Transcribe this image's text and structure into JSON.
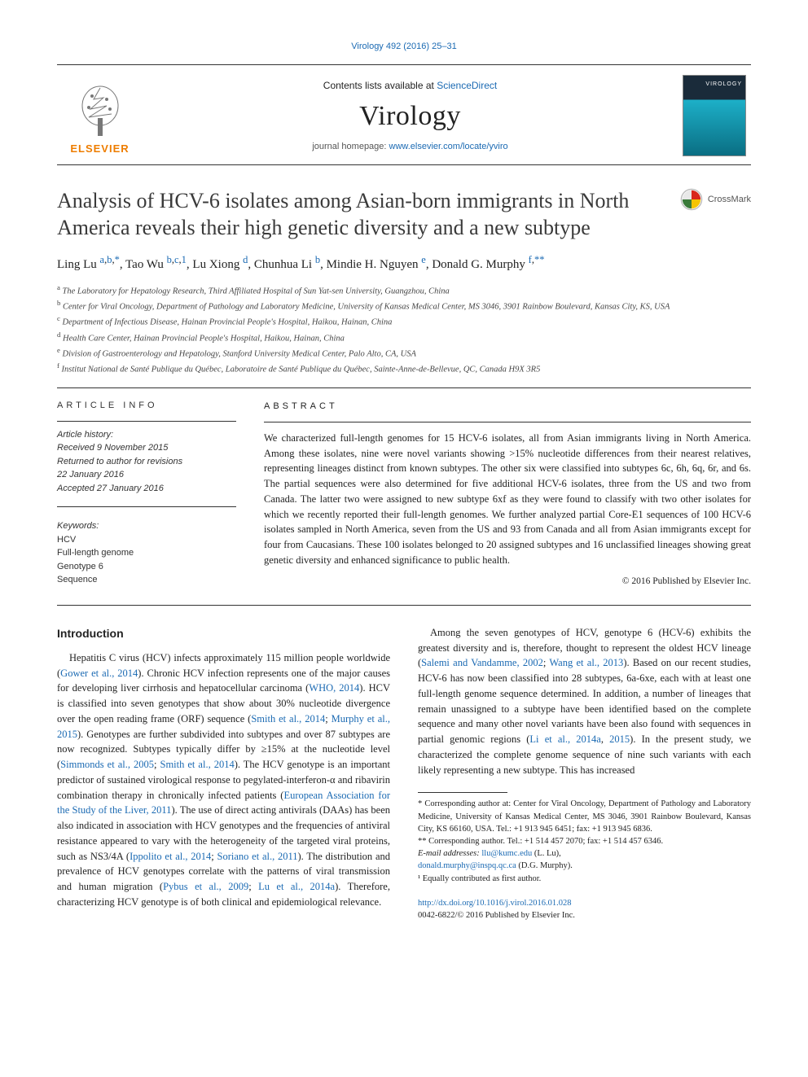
{
  "top_citation": "Virology 492 (2016) 25–31",
  "header": {
    "contents_prefix": "Contents lists available at ",
    "contents_link": "ScienceDirect",
    "journal_name": "Virology",
    "homepage_prefix": "journal homepage: ",
    "homepage_url": "www.elsevier.com/locate/yviro",
    "publisher_brand": "ELSEVIER",
    "cover_label": "VIROLOGY"
  },
  "crossmark_label": "CrossMark",
  "title": "Analysis of HCV-6 isolates among Asian-born immigrants in North America reveals their high genetic diversity and a new subtype",
  "authors_html": "Ling Lu <sup><a href=\"#\">a</a>,<a href=\"#\">b</a>,<a href=\"#\">*</a></sup>, Tao Wu <sup><a href=\"#\">b</a>,<a href=\"#\">c</a>,<a href=\"#\">1</a></sup>, Lu Xiong <sup><a href=\"#\">d</a></sup>, Chunhua Li <sup><a href=\"#\">b</a></sup>, Mindie H. Nguyen <sup><a href=\"#\">e</a></sup>, Donald G. Murphy <sup><a href=\"#\">f</a>,<a href=\"#\">**</a></sup>",
  "affiliations": [
    {
      "sup": "a",
      "text": "The Laboratory for Hepatology Research, Third Affiliated Hospital of Sun Yat-sen University, Guangzhou, China"
    },
    {
      "sup": "b",
      "text": "Center for Viral Oncology, Department of Pathology and Laboratory Medicine, University of Kansas Medical Center, MS 3046, 3901 Rainbow Boulevard, Kansas City, KS, USA"
    },
    {
      "sup": "c",
      "text": "Department of Infectious Disease, Hainan Provincial People's Hospital, Haikou, Hainan, China"
    },
    {
      "sup": "d",
      "text": "Health Care Center, Hainan Provincial People's Hospital, Haikou, Hainan, China"
    },
    {
      "sup": "e",
      "text": "Division of Gastroenterology and Hepatology, Stanford University Medical Center, Palo Alto, CA, USA"
    },
    {
      "sup": "f",
      "text": "Institut National de Santé Publique du Québec, Laboratoire de Santé Publique du Québec, Sainte-Anne-de-Bellevue, QC, Canada H9X 3R5"
    }
  ],
  "article_info": {
    "heading": "ARTICLE INFO",
    "history_label": "Article history:",
    "history": [
      "Received 9 November 2015",
      "Returned to author for revisions",
      "22 January 2016",
      "Accepted 27 January 2016"
    ],
    "keywords_label": "Keywords:",
    "keywords": [
      "HCV",
      "Full-length genome",
      "Genotype 6",
      "Sequence"
    ]
  },
  "abstract": {
    "heading": "ABSTRACT",
    "text": "We characterized full-length genomes for 15 HCV-6 isolates, all from Asian immigrants living in North America. Among these isolates, nine were novel variants showing >15% nucleotide differences from their nearest relatives, representing lineages distinct from known subtypes. The other six were classified into subtypes 6c, 6h, 6q, 6r, and 6s. The partial sequences were also determined for five additional HCV-6 isolates, three from the US and two from Canada. The latter two were assigned to new subtype 6xf as they were found to classify with two other isolates for which we recently reported their full-length genomes. We further analyzed partial Core-E1 sequences of 100 HCV-6 isolates sampled in North America, seven from the US and 93 from Canada and all from Asian immigrants except for four from Caucasians. These 100 isolates belonged to 20 assigned subtypes and 16 unclassified lineages showing great genetic diversity and enhanced significance to public health.",
    "copyright": "© 2016 Published by Elsevier Inc."
  },
  "body": {
    "intro_heading": "Introduction",
    "para1_pre": "Hepatitis C virus (HCV) infects approximately 115 million people worldwide (",
    "ref1": "Gower et al., 2014",
    "para1_mid1": "). Chronic HCV infection represents one of the major causes for developing liver cirrhosis and hepatocellular carcinoma (",
    "ref2": "WHO, 2014",
    "para1_mid2": "). HCV is classified into seven genotypes that show about 30% nucleotide divergence over the open reading frame (ORF) sequence (",
    "ref3": "Smith et al., 2014",
    "ref3b": "Murphy et al., 2015",
    "para1_mid3": "). Genotypes are further subdivided into subtypes and over 87 subtypes are now recognized. Subtypes typically differ by ≥15% at the nucleotide level (",
    "ref4": "Simmonds et al., 2005",
    "ref4b": "Smith et al., 2014",
    "para1_mid4": "). The HCV genotype is an important predictor of sustained virological response to pegylated-interferon-α and ribavirin combination therapy in chronically infected patients (",
    "ref5": "European Association for the Study of the Liver, 2011",
    "para1_mid5": "). The use of direct acting antivirals (DAAs) has been also indicated in association with HCV genotypes and the frequencies of antiviral resistance appeared to vary with the heterogeneity of the targeted viral proteins, such as NS3/4A (",
    "ref6": "Ippolito et al., 2014",
    "ref6b": "Soriano et al., 2011",
    "para1_mid6": "). The distribution and prevalence of HCV genotypes correlate with the patterns of viral transmission and human migration (",
    "ref7": "Pybus et al., 2009",
    "ref7b": "Lu et al., 2014a",
    "para1_end": "). Therefore, characterizing HCV genotype is of both clinical and epidemiological relevance.",
    "para2_pre": "Among the seven genotypes of HCV, genotype 6 (HCV-6) exhibits the greatest diversity and is, therefore, thought to represent the oldest HCV lineage (",
    "ref8": "Salemi and Vandamme, 2002",
    "ref8b": "Wang et al., 2013",
    "para2_mid1": "). Based on our recent studies, HCV-6 has now been classified into 28 subtypes, 6a-6xe, each with at least one full-length genome sequence determined. In addition, a number of lineages that remain unassigned to a subtype have been identified based on the complete sequence and many other novel variants have been also found with sequences in partial genomic regions (",
    "ref9": "Li et al., 2014a",
    "ref9b": "2015",
    "para2_end": "). In the present study, we characterized the complete genome sequence of nine such variants with each likely representing a new subtype. This has increased"
  },
  "footnotes": {
    "corr1": "* Corresponding author at: Center for Viral Oncology, Department of Pathology and Laboratory Medicine, University of Kansas Medical Center, MS 3046, 3901 Rainbow Boulevard, Kansas City, KS 66160, USA. Tel.: +1 913 945 6451; fax: +1 913 945 6836.",
    "corr2": "** Corresponding author. Tel.: +1 514 457 2070; fax: +1 514 457 6346.",
    "emails_label": "E-mail addresses: ",
    "email1": "llu@kumc.edu",
    "email1_name": " (L. Lu),",
    "email2": "donald.murphy@inspq.qc.ca",
    "email2_name": " (D.G. Murphy).",
    "equal": "¹ Equally contributed as first author."
  },
  "doi": {
    "url": "http://dx.doi.org/10.1016/j.virol.2016.01.028",
    "issn_line": "0042-6822/© 2016 Published by Elsevier Inc."
  },
  "colors": {
    "link": "#1b6ab3",
    "brand_orange": "#ee7d00",
    "text": "#222222",
    "rule": "#333333"
  }
}
